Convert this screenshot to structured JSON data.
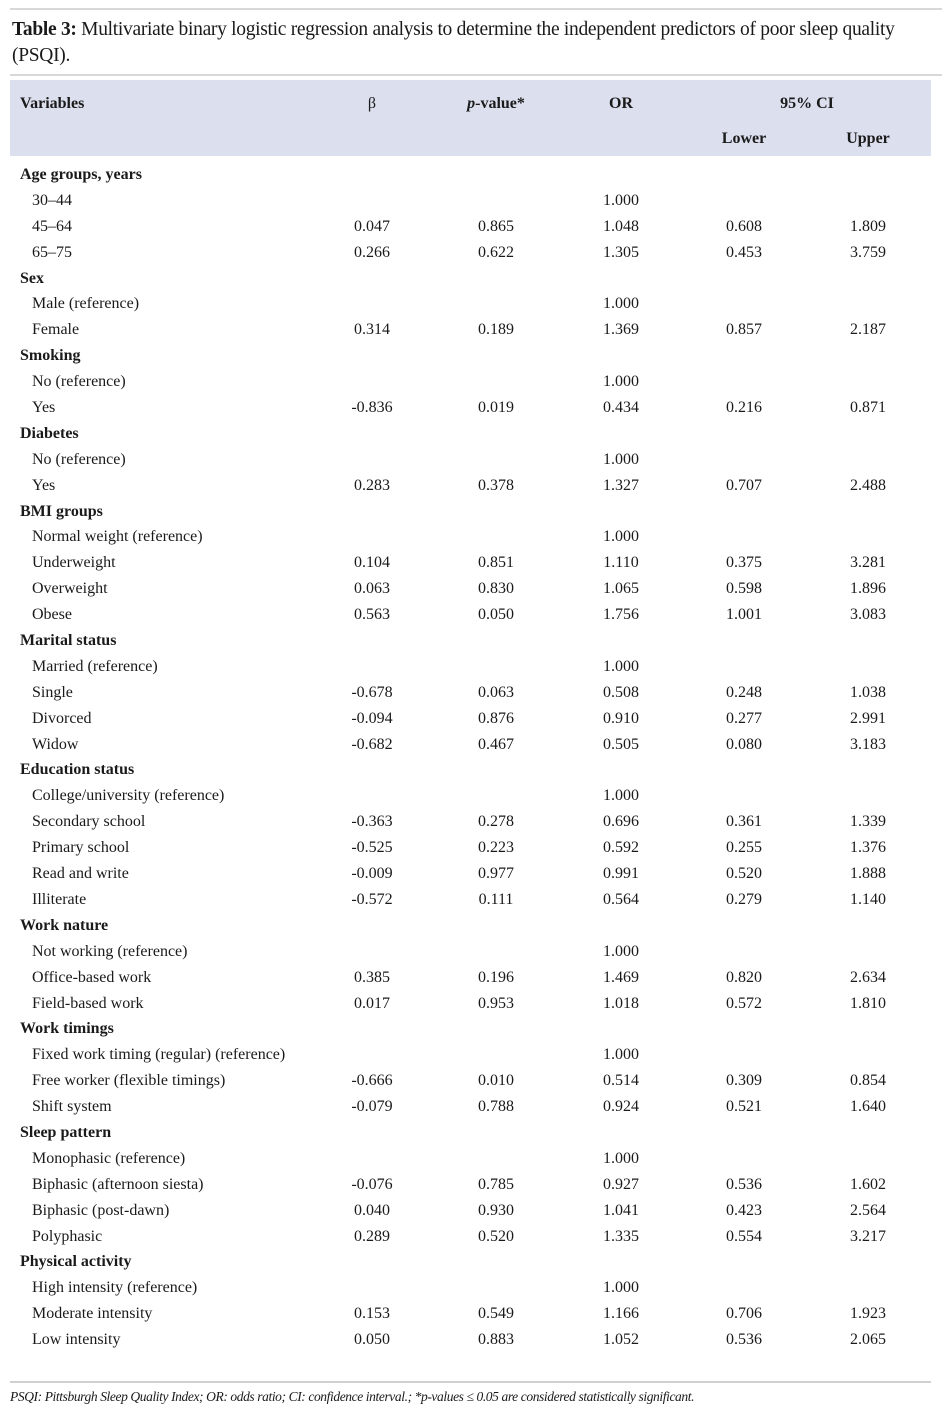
{
  "caption": {
    "label": "Table 3:",
    "text": " Multivariate binary logistic regression analysis to determine the independent predictors of poor sleep quality (PSQI)."
  },
  "headers": {
    "variables": "Variables",
    "beta": "β",
    "p_value_italic": "p",
    "p_value_rest": "-value*",
    "or": "OR",
    "ci": "95% CI",
    "lower": "Lower",
    "upper": "Upper"
  },
  "groups": [
    {
      "name": "Age groups, years",
      "rows": [
        [
          "30–44",
          "",
          "",
          "1.000",
          "",
          ""
        ],
        [
          "45–64",
          "0.047",
          "0.865",
          "1.048",
          "0.608",
          "1.809"
        ],
        [
          "65–75",
          "0.266",
          "0.622",
          "1.305",
          "0.453",
          "3.759"
        ]
      ]
    },
    {
      "name": "Sex",
      "rows": [
        [
          "Male (reference)",
          "",
          "",
          "1.000",
          "",
          ""
        ],
        [
          "Female",
          "0.314",
          "0.189",
          "1.369",
          "0.857",
          "2.187"
        ]
      ]
    },
    {
      "name": "Smoking",
      "rows": [
        [
          "No (reference)",
          "",
          "",
          "1.000",
          "",
          ""
        ],
        [
          "Yes",
          "-0.836",
          "0.019",
          "0.434",
          "0.216",
          "0.871"
        ]
      ]
    },
    {
      "name": "Diabetes",
      "rows": [
        [
          "No (reference)",
          "",
          "",
          "1.000",
          "",
          ""
        ],
        [
          "Yes",
          "0.283",
          "0.378",
          "1.327",
          "0.707",
          "2.488"
        ]
      ]
    },
    {
      "name": "BMI groups",
      "rows": [
        [
          "Normal weight (reference)",
          "",
          "",
          "1.000",
          "",
          ""
        ],
        [
          "Underweight",
          "0.104",
          "0.851",
          "1.110",
          "0.375",
          "3.281"
        ],
        [
          "Overweight",
          "0.063",
          "0.830",
          "1.065",
          "0.598",
          "1.896"
        ],
        [
          "Obese",
          "0.563",
          "0.050",
          "1.756",
          "1.001",
          "3.083"
        ]
      ]
    },
    {
      "name": "Marital status",
      "rows": [
        [
          "Married (reference)",
          "",
          "",
          "1.000",
          "",
          ""
        ],
        [
          "Single",
          "-0.678",
          "0.063",
          "0.508",
          "0.248",
          "1.038"
        ],
        [
          "Divorced",
          "-0.094",
          "0.876",
          "0.910",
          "0.277",
          "2.991"
        ],
        [
          "Widow",
          "-0.682",
          "0.467",
          "0.505",
          "0.080",
          "3.183"
        ]
      ]
    },
    {
      "name": "Education status",
      "rows": [
        [
          "College/university (reference)",
          "",
          "",
          "1.000",
          "",
          ""
        ],
        [
          "Secondary school",
          "-0.363",
          "0.278",
          "0.696",
          "0.361",
          "1.339"
        ],
        [
          "Primary school",
          "-0.525",
          "0.223",
          "0.592",
          "0.255",
          "1.376"
        ],
        [
          "Read and write",
          "-0.009",
          "0.977",
          "0.991",
          "0.520",
          "1.888"
        ],
        [
          "Illiterate",
          "-0.572",
          "0.111",
          "0.564",
          "0.279",
          "1.140"
        ]
      ]
    },
    {
      "name": "Work nature",
      "rows": [
        [
          "Not working (reference)",
          "",
          "",
          "1.000",
          "",
          ""
        ],
        [
          "Office-based work",
          "0.385",
          "0.196",
          "1.469",
          "0.820",
          "2.634"
        ],
        [
          "Field-based work",
          "0.017",
          "0.953",
          "1.018",
          "0.572",
          "1.810"
        ]
      ]
    },
    {
      "name": "Work timings",
      "rows": [
        [
          "Fixed work timing (regular) (reference)",
          "",
          "",
          "1.000",
          "",
          ""
        ],
        [
          "Free worker (flexible timings)",
          "-0.666",
          "0.010",
          "0.514",
          "0.309",
          "0.854"
        ],
        [
          "Shift system",
          "-0.079",
          "0.788",
          "0.924",
          "0.521",
          "1.640"
        ]
      ]
    },
    {
      "name": "Sleep pattern",
      "rows": [
        [
          "Monophasic (reference)",
          "",
          "",
          "1.000",
          "",
          ""
        ],
        [
          "Biphasic (afternoon siesta)",
          "-0.076",
          "0.785",
          "0.927",
          "0.536",
          "1.602"
        ],
        [
          "Biphasic (post-dawn)",
          "0.040",
          "0.930",
          "1.041",
          "0.423",
          "2.564"
        ],
        [
          "Polyphasic",
          "0.289",
          "0.520",
          "1.335",
          "0.554",
          "3.217"
        ]
      ]
    },
    {
      "name": "Physical activity",
      "rows": [
        [
          "High intensity (reference)",
          "",
          "",
          "1.000",
          "",
          ""
        ],
        [
          "Moderate intensity",
          "0.153",
          "0.549",
          "1.166",
          "0.706",
          "1.923"
        ],
        [
          "Low intensity",
          "0.050",
          "0.883",
          "1.052",
          "0.536",
          "2.065"
        ]
      ]
    }
  ],
  "footnote": "PSQI: Pittsburgh Sleep Quality Index; OR: odds ratio; CI: confidence interval.; *p-values ≤ 0.05 are considered statistically significant."
}
